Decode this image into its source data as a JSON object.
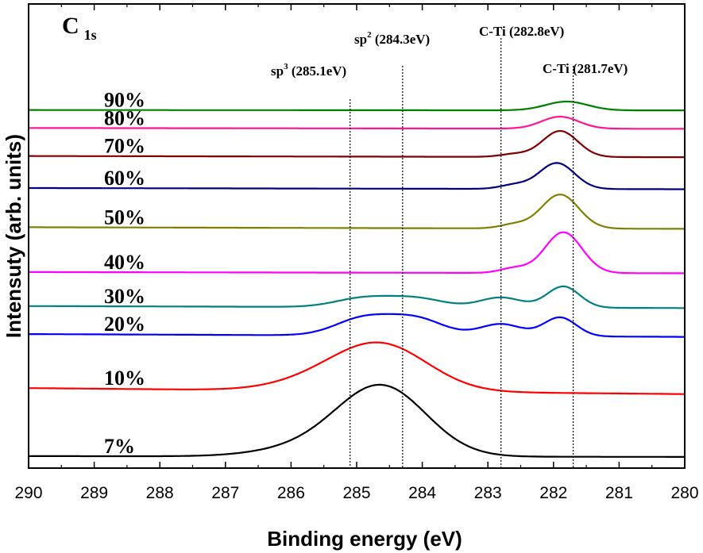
{
  "chart_data": {
    "type": "line",
    "panel_label": {
      "main": "C",
      "sub": "1s"
    },
    "xlabel": "Binding energy (eV)",
    "ylabel": "Intensuty (arb. units)",
    "xlim": [
      290,
      280
    ],
    "x_reversed": true,
    "xticks": [
      290,
      289,
      288,
      287,
      286,
      285,
      284,
      283,
      282,
      281,
      280
    ],
    "yticks_labeled": false,
    "grid": false,
    "annotations": [
      {
        "prefix": "sp",
        "sup": "3",
        "suffix": " (285.1eV)",
        "x": 285.1
      },
      {
        "prefix": "sp",
        "sup": "2",
        "suffix": " (284.3eV)",
        "x": 284.3
      },
      {
        "prefix": "C-Ti (282.8eV)",
        "sup": "",
        "suffix": "",
        "x": 282.8
      },
      {
        "prefix": "C-Ti (281.7eV)",
        "sup": "",
        "suffix": "",
        "x": 281.7
      }
    ],
    "series": [
      {
        "name": "7%",
        "color": "#000000",
        "baseline": 2.0,
        "tail": 1.8,
        "peaks": [
          {
            "c": 284.6,
            "a": 16.8,
            "w": 0.95
          },
          {
            "c": 285.6,
            "a": 2.5,
            "w": 1.1
          }
        ]
      },
      {
        "name": "10%",
        "color": "#ff0000",
        "baseline": 19.0,
        "tail": 17.5,
        "peaks": [
          {
            "c": 284.6,
            "a": 11.0,
            "w": 1.0
          },
          {
            "c": 285.5,
            "a": 2.5,
            "w": 1.0
          }
        ]
      },
      {
        "name": "20%",
        "color": "#0000ff",
        "baseline": 32.5,
        "tail": 31.8,
        "peaks": [
          {
            "c": 284.9,
            "a": 4.2,
            "w": 0.6
          },
          {
            "c": 284.1,
            "a": 4.2,
            "w": 0.6
          },
          {
            "c": 282.8,
            "a": 3.0,
            "w": 0.45
          },
          {
            "c": 281.9,
            "a": 4.7,
            "w": 0.35
          }
        ]
      },
      {
        "name": "30%",
        "color": "#008080",
        "baseline": 39.5,
        "tail": 39.0,
        "peaks": [
          {
            "c": 284.9,
            "a": 2.2,
            "w": 0.6
          },
          {
            "c": 284.1,
            "a": 2.2,
            "w": 0.6
          },
          {
            "c": 282.8,
            "a": 2.5,
            "w": 0.45
          },
          {
            "c": 281.85,
            "a": 5.3,
            "w": 0.35
          }
        ]
      },
      {
        "name": "40%",
        "color": "#ff00ff",
        "baseline": 48.0,
        "tail": 47.7,
        "peaks": [
          {
            "c": 281.85,
            "a": 10.2,
            "w": 0.4
          },
          {
            "c": 282.6,
            "a": 1.2,
            "w": 0.3
          }
        ]
      },
      {
        "name": "50%",
        "color": "#808000",
        "baseline": 59.2,
        "tail": 58.8,
        "peaks": [
          {
            "c": 281.9,
            "a": 8.5,
            "w": 0.4
          },
          {
            "c": 282.6,
            "a": 1.0,
            "w": 0.3
          }
        ]
      },
      {
        "name": "60%",
        "color": "#000080",
        "baseline": 69.0,
        "tail": 68.7,
        "peaks": [
          {
            "c": 281.95,
            "a": 6.5,
            "w": 0.38
          },
          {
            "c": 282.6,
            "a": 1.0,
            "w": 0.3
          }
        ]
      },
      {
        "name": "70%",
        "color": "#800000",
        "baseline": 77.0,
        "tail": 76.7,
        "peaks": [
          {
            "c": 281.9,
            "a": 6.5,
            "w": 0.38
          },
          {
            "c": 282.6,
            "a": 0.7,
            "w": 0.3
          }
        ]
      },
      {
        "name": "80%",
        "color": "#ff1493",
        "baseline": 84.0,
        "tail": 83.8,
        "peaks": [
          {
            "c": 281.9,
            "a": 3.0,
            "w": 0.4
          }
        ]
      },
      {
        "name": "90%",
        "color": "#008000",
        "baseline": 88.5,
        "tail": 88.4,
        "peaks": [
          {
            "c": 281.8,
            "a": 2.2,
            "w": 0.45
          }
        ]
      }
    ],
    "ylim": [
      -1,
      115
    ]
  }
}
